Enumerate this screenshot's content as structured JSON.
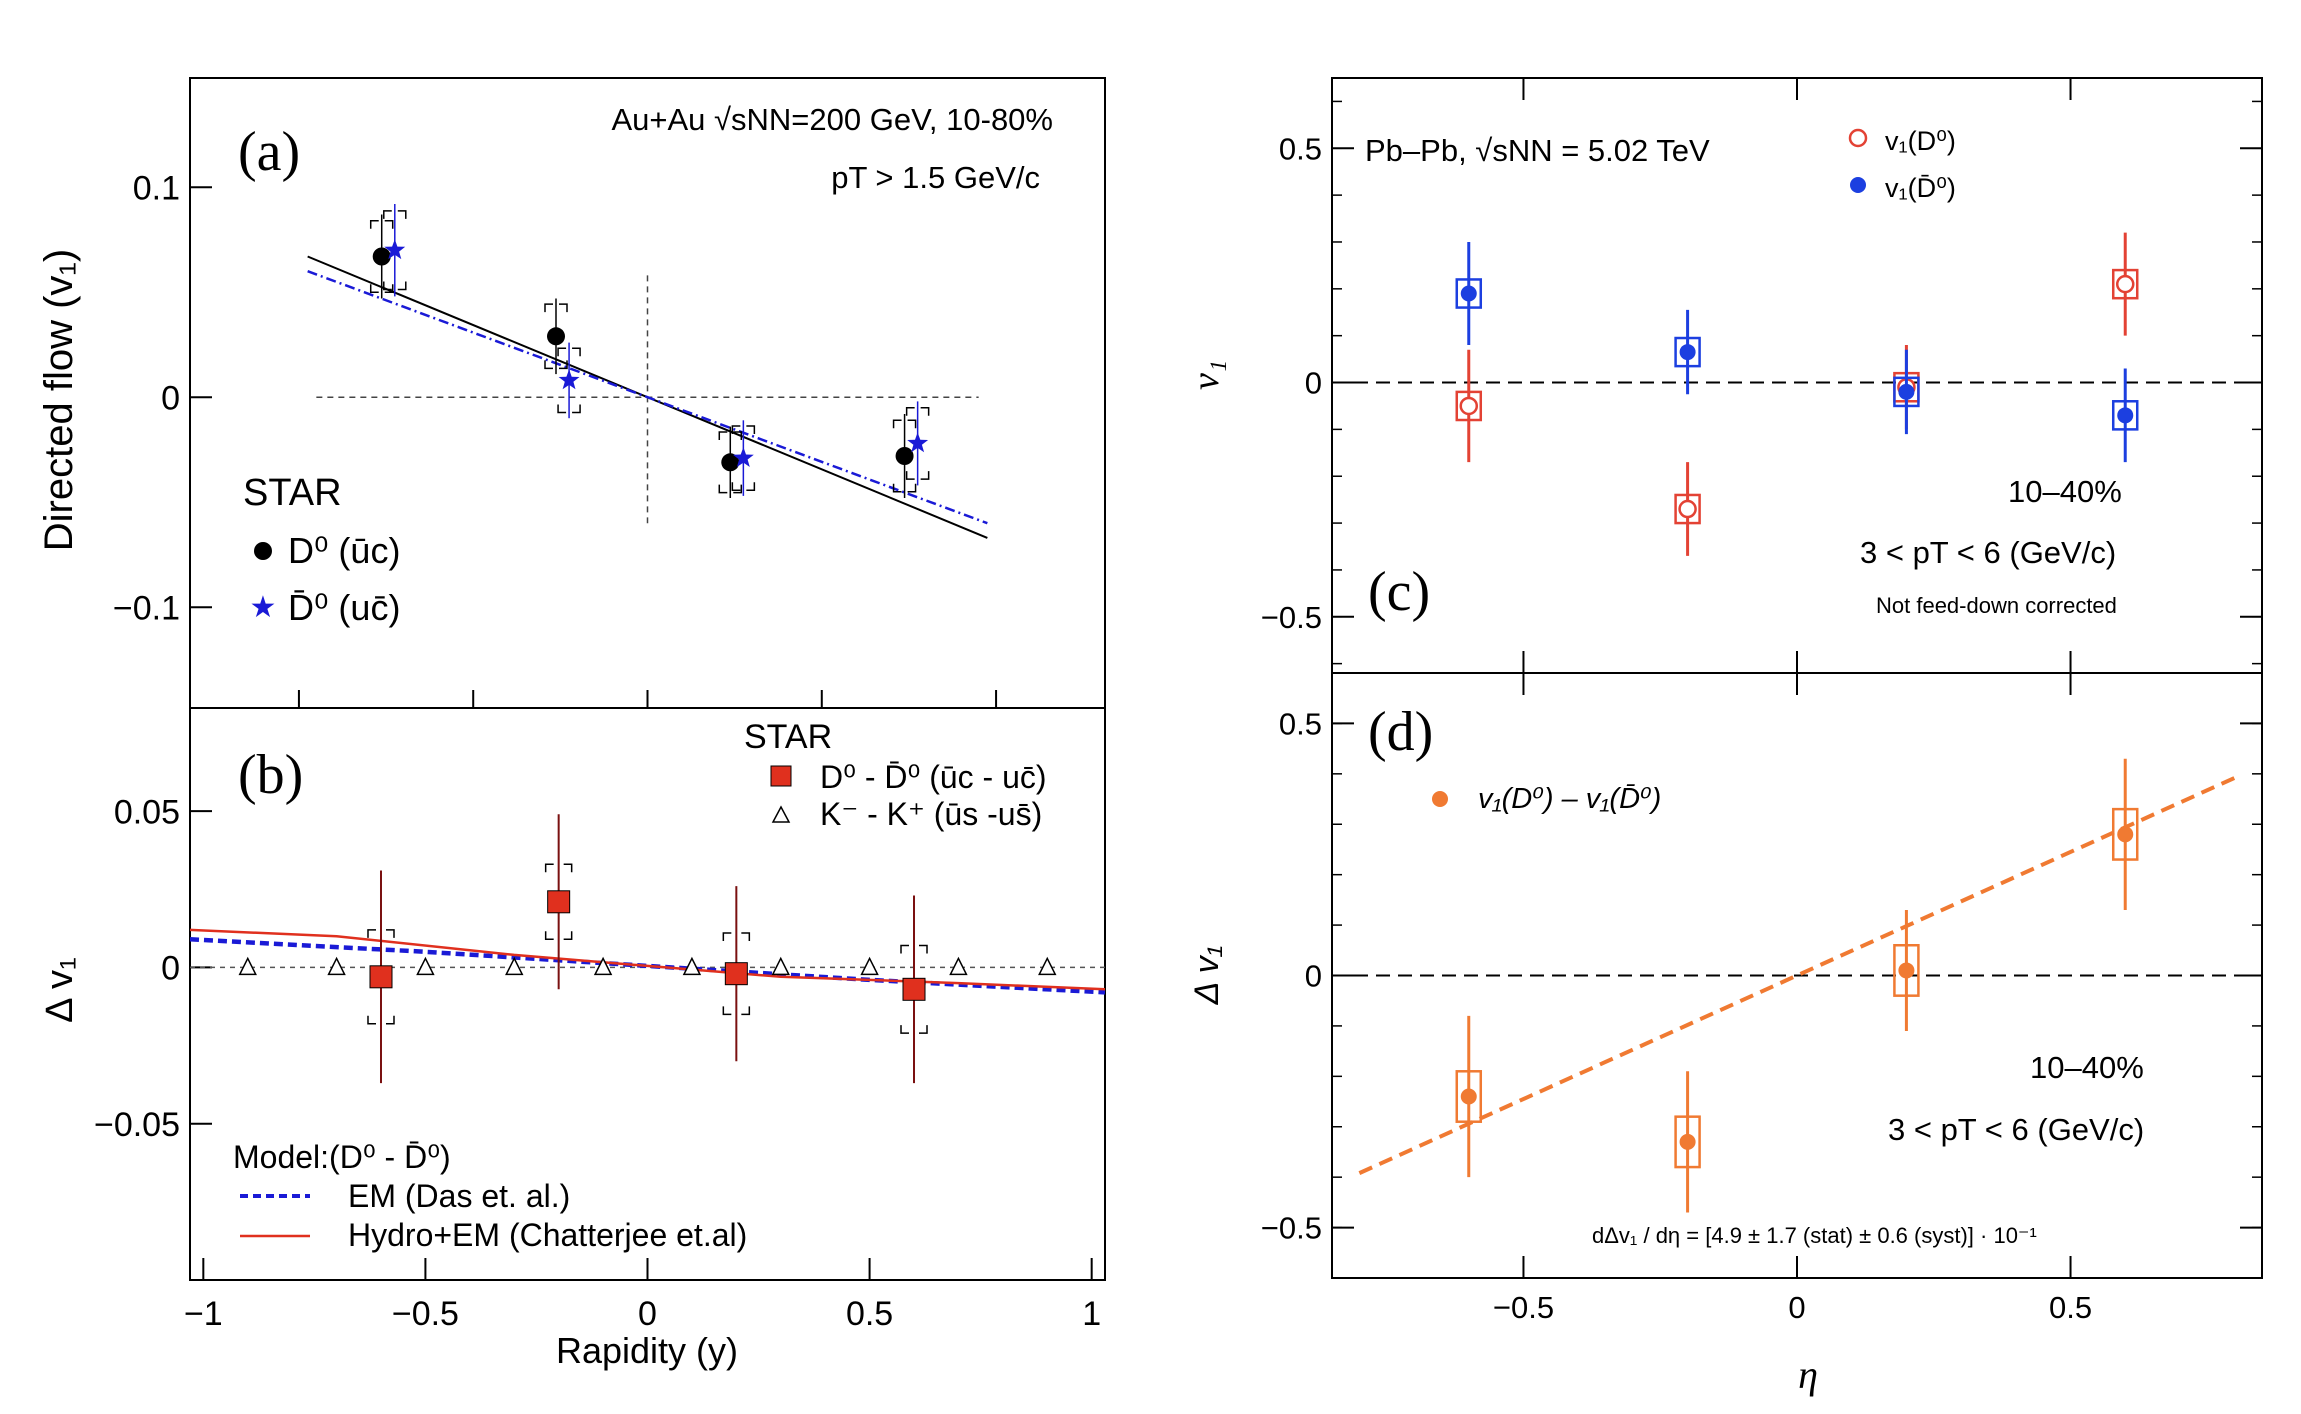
{
  "colors": {
    "black": "#000000",
    "blue": "#1a1ad6",
    "red": "#e0301e",
    "alice_red": "#e34234",
    "alice_blue": "#1c3fe0",
    "orange": "#f07a32",
    "darkred": "#7a1010"
  },
  "chart_data": [
    {
      "panel": "(a)",
      "type": "scatter",
      "ylabel": "Directed flow (v₁)",
      "xlim": [
        -1.05,
        1.05
      ],
      "ylim": [
        -0.148,
        0.152
      ],
      "yticks": [
        {
          "v": 0.1,
          "label": "0.1"
        },
        {
          "v": 0,
          "label": "0"
        },
        {
          "v": -0.1,
          "label": "−0.1"
        }
      ],
      "annotation_line1": "Au+Au √sNN=200 GeV, 10-80%",
      "annotation_line2": "pT > 1.5 GeV/c",
      "legend_title": "STAR",
      "legend_entries": [
        "D⁰ (ūc)",
        "D̄⁰ (uc̄)"
      ],
      "series": [
        {
          "name": "D⁰ (ūc)",
          "marker": "circle",
          "color": "#000000",
          "x": [
            -0.61,
            -0.21,
            0.19,
            0.59
          ],
          "y": [
            0.067,
            0.029,
            -0.031,
            -0.028
          ],
          "err": [
            0.02,
            0.018,
            0.017,
            0.02
          ]
        },
        {
          "name": "D̄⁰ (uc̄)",
          "marker": "star",
          "color": "#1a1ad6",
          "x": [
            -0.58,
            -0.18,
            0.22,
            0.62
          ],
          "y": [
            0.07,
            0.008,
            -0.029,
            -0.022
          ],
          "err": [
            0.022,
            0.018,
            0.018,
            0.02
          ]
        }
      ],
      "fit_lines": [
        {
          "name": "D0 fit",
          "style": "solid",
          "color": "#000000",
          "x": [
            -0.78,
            0.78
          ],
          "y": [
            0.067,
            -0.067
          ]
        },
        {
          "name": "D0bar fit",
          "style": "dashdot",
          "color": "#1a1ad6",
          "x": [
            -0.78,
            0.78
          ],
          "y": [
            0.06,
            -0.06
          ]
        }
      ]
    },
    {
      "panel": "(b)",
      "type": "scatter",
      "xlabel": "Rapidity (y)",
      "ylabel": "Δ v₁",
      "xlim": [
        -1.03,
        1.03
      ],
      "ylim": [
        -0.1,
        0.083
      ],
      "xticks": [
        {
          "v": -1,
          "label": "−1"
        },
        {
          "v": -0.5,
          "label": "−0.5"
        },
        {
          "v": 0,
          "label": "0"
        },
        {
          "v": 0.5,
          "label": "0.5"
        },
        {
          "v": 1,
          "label": "1"
        }
      ],
      "yticks": [
        {
          "v": 0.05,
          "label": "0.05"
        },
        {
          "v": 0,
          "label": "0"
        },
        {
          "v": -0.05,
          "label": "−0.05"
        }
      ],
      "legend_title": "STAR",
      "legend_entries": [
        "D⁰ - D̄⁰ (ūc - uc̄)",
        "K⁻ - K⁺ (ūs -us̄)"
      ],
      "model_title": "Model:(D⁰ - D̄⁰)",
      "model_entries": [
        "EM (Das et. al.)",
        "Hydro+EM (Chatterjee et.al)"
      ],
      "series": [
        {
          "name": "D0 - D0bar",
          "marker": "square",
          "color": "#e0301e",
          "x": [
            -0.6,
            -0.2,
            0.2,
            0.6
          ],
          "y": [
            -0.003,
            0.021,
            -0.002,
            -0.007
          ],
          "err": [
            0.034,
            0.028,
            0.028,
            0.03
          ],
          "syst": [
            0.015,
            0.012,
            0.013,
            0.014
          ]
        },
        {
          "name": "K- - K+",
          "marker": "triangle",
          "color": "#000000",
          "x": [
            -0.9,
            -0.7,
            -0.5,
            -0.3,
            -0.1,
            0.1,
            0.3,
            0.5,
            0.7,
            0.9
          ],
          "y": [
            0,
            0,
            0,
            0,
            0,
            0,
            0,
            0,
            0,
            0
          ]
        }
      ],
      "model_curves": [
        {
          "name": "EM (Das et. al.)",
          "style": "dashed",
          "color": "#1a1ad6",
          "x": [
            -1.03,
            -0.5,
            0,
            0.5,
            1.03
          ],
          "y": [
            0.009,
            0.005,
            0.0005,
            -0.004,
            -0.008
          ]
        },
        {
          "name": "Hydro+EM (Chatterjee et.al)",
          "style": "solid",
          "color": "#e0301e",
          "x": [
            -1.03,
            -0.7,
            -0.3,
            0,
            0.3,
            0.7,
            1.03
          ],
          "y": [
            0.012,
            0.01,
            0.004,
            0.0005,
            -0.003,
            -0.005,
            -0.007
          ]
        }
      ]
    },
    {
      "panel": "(c)",
      "type": "scatter",
      "ylabel": "v₁",
      "xlim": [
        -0.85,
        0.85
      ],
      "ylim": [
        -0.62,
        0.65
      ],
      "yticks": [
        {
          "v": 0.5,
          "label": "0.5"
        },
        {
          "v": 0,
          "label": "0"
        },
        {
          "v": -0.5,
          "label": "−0.5"
        }
      ],
      "annotation_system": "Pb–Pb, √sNN = 5.02 TeV",
      "annotation_centrality": "10–40%",
      "annotation_pt": "3 < pT < 6 (GeV/c)",
      "annotation_note": "Not feed-down corrected",
      "legend_entries": [
        "v₁(D⁰)",
        "v₁(D̄⁰)"
      ],
      "series": [
        {
          "name": "v1(D0)",
          "marker": "open-circle",
          "color": "#e34234",
          "x": [
            -0.6,
            -0.2,
            0.2,
            0.6
          ],
          "y": [
            -0.05,
            -0.27,
            -0.01,
            0.21
          ],
          "err": [
            0.12,
            0.1,
            0.09,
            0.11
          ],
          "syst": [
            0.03,
            0.03,
            0.03,
            0.03
          ]
        },
        {
          "name": "v1(D0bar)",
          "marker": "filled-circle",
          "color": "#1c3fe0",
          "x": [
            -0.6,
            -0.2,
            0.2,
            0.6
          ],
          "y": [
            0.19,
            0.065,
            -0.02,
            -0.07
          ],
          "err": [
            0.11,
            0.09,
            0.09,
            0.1
          ],
          "syst": [
            0.03,
            0.03,
            0.03,
            0.03
          ]
        }
      ]
    },
    {
      "panel": "(d)",
      "type": "scatter",
      "xlabel": "η",
      "ylabel": "Δ v₁",
      "xlim": [
        -0.85,
        0.85
      ],
      "ylim": [
        -0.6,
        0.6
      ],
      "xticks": [
        {
          "v": -0.5,
          "label": "−0.5"
        },
        {
          "v": 0,
          "label": "0"
        },
        {
          "v": 0.5,
          "label": "0.5"
        }
      ],
      "yticks": [
        {
          "v": 0.5,
          "label": "0.5"
        },
        {
          "v": 0,
          "label": "0"
        },
        {
          "v": -0.5,
          "label": "−0.5"
        }
      ],
      "legend_entries": [
        "v₁(D⁰) – v₁(D̄⁰)"
      ],
      "annotation_centrality": "10–40%",
      "annotation_pt": "3 < pT < 6 (GeV/c)",
      "annotation_slope": "dΔv₁ / dη = [4.9 ± 1.7 (stat) ± 0.6 (syst)] · 10⁻¹",
      "series": [
        {
          "name": "v1(D0) - v1(D0bar)",
          "marker": "filled-circle",
          "color": "#f07a32",
          "x": [
            -0.6,
            -0.2,
            0.2,
            0.6
          ],
          "y": [
            -0.24,
            -0.33,
            0.01,
            0.28
          ],
          "err": [
            0.16,
            0.14,
            0.12,
            0.15
          ],
          "syst": [
            0.05,
            0.05,
            0.05,
            0.05
          ]
        }
      ],
      "fit_lines": [
        {
          "name": "linear fit",
          "style": "dashed",
          "color": "#f07a32",
          "x": [
            -0.8,
            0.8
          ],
          "y": [
            -0.392,
            0.392
          ]
        }
      ]
    }
  ]
}
